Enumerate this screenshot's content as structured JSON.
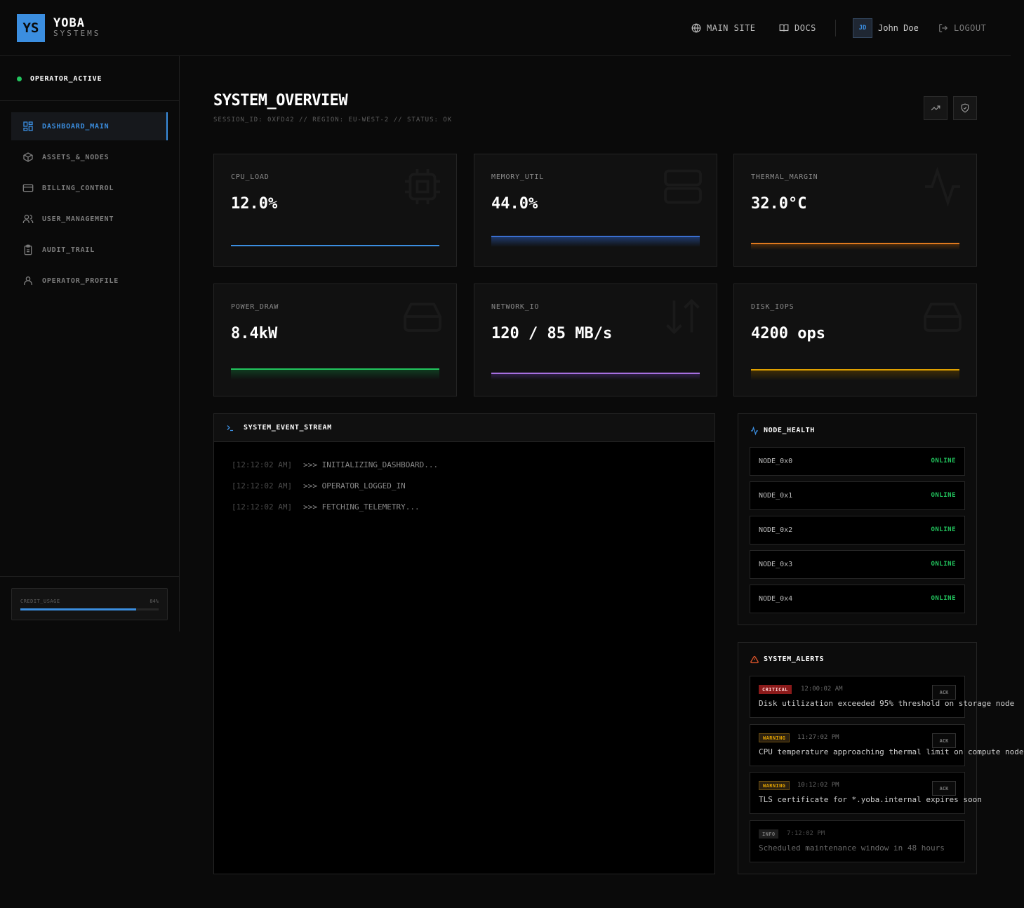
{
  "header": {
    "logo_initials": "YS",
    "logo_name": "YOBA",
    "logo_sub": "SYSTEMS",
    "links": {
      "main_site": "MAIN SITE",
      "docs": "DOCS"
    },
    "user": {
      "initials": "JD",
      "name": "John Doe"
    },
    "logout": "LOGOUT"
  },
  "sidebar": {
    "status": "OPERATOR_ACTIVE",
    "items": [
      {
        "label": "DASHBOARD_MAIN",
        "icon": "dashboard-icon",
        "active": true
      },
      {
        "label": "ASSETS_&_NODES",
        "icon": "cube-icon",
        "active": false
      },
      {
        "label": "BILLING_CONTROL",
        "icon": "credit-card-icon",
        "active": false
      },
      {
        "label": "USER_MANAGEMENT",
        "icon": "users-icon",
        "active": false
      },
      {
        "label": "AUDIT_TRAIL",
        "icon": "clipboard-icon",
        "active": false
      },
      {
        "label": "OPERATOR_PROFILE",
        "icon": "user-icon",
        "active": false
      }
    ],
    "credit": {
      "label": "CREDIT_USAGE",
      "percent_label": "84%",
      "percent": 84
    }
  },
  "main": {
    "title": "SYSTEM_OVERVIEW",
    "subtitle": "SESSION_ID: 0XFD42 // REGION: EU-WEST-2 // STATUS: OK"
  },
  "metrics": [
    {
      "label": "CPU_LOAD",
      "value": "12.0%",
      "color": "#3b8ee0",
      "icon": "cpu-icon"
    },
    {
      "label": "MEMORY_UTIL",
      "value": "44.0%",
      "color": "#3b6fd0",
      "icon": "server-icon"
    },
    {
      "label": "THERMAL_MARGIN",
      "value": "32.0°C",
      "color": "#e07a1f",
      "icon": "activity-icon"
    },
    {
      "label": "POWER_DRAW",
      "value": "8.4kW",
      "color": "#22c55e",
      "icon": "hard-drive-icon"
    },
    {
      "label": "NETWORK_IO",
      "value": "120 / 85 MB/s",
      "color": "#a66fe0",
      "icon": "arrows-up-down-icon"
    },
    {
      "label": "DISK_IOPS",
      "value": "4200 ops",
      "color": "#e0a100",
      "icon": "hard-drive-icon"
    }
  ],
  "event_stream": {
    "title": "SYSTEM_EVENT_STREAM",
    "lines": [
      {
        "time": "[12:12:02 AM]",
        "msg": ">>> INITIALIZING_DASHBOARD..."
      },
      {
        "time": "[12:12:02 AM]",
        "msg": ">>> OPERATOR_LOGGED_IN"
      },
      {
        "time": "[12:12:02 AM]",
        "msg": ">>> FETCHING_TELEMETRY..."
      }
    ]
  },
  "node_health": {
    "title": "NODE_HEALTH",
    "nodes": [
      {
        "name": "NODE_0x0",
        "status": "ONLINE"
      },
      {
        "name": "NODE_0x1",
        "status": "ONLINE"
      },
      {
        "name": "NODE_0x2",
        "status": "ONLINE"
      },
      {
        "name": "NODE_0x3",
        "status": "ONLINE"
      },
      {
        "name": "NODE_0x4",
        "status": "ONLINE"
      }
    ]
  },
  "alerts": {
    "title": "SYSTEM_ALERTS",
    "items": [
      {
        "level": "CRITICAL",
        "time": "12:00:02 AM",
        "msg": "Disk utilization exceeded 95% threshold on storage node",
        "ack": "ACK"
      },
      {
        "level": "WARNING",
        "time": "11:27:02 PM",
        "msg": "CPU temperature approaching thermal limit on compute node",
        "ack": "ACK"
      },
      {
        "level": "WARNING",
        "time": "10:12:02 PM",
        "msg": "TLS certificate for *.yoba.internal expires soon",
        "ack": "ACK"
      },
      {
        "level": "INFO",
        "time": "7:12:02 PM",
        "msg": "Scheduled maintenance window in 48 hours",
        "ack": ""
      }
    ]
  }
}
